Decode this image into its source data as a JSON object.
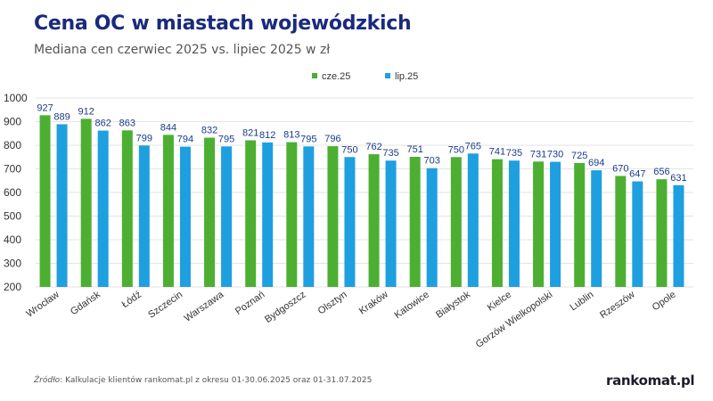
{
  "header": {
    "title": "Cena OC w miastach wojewódzkich",
    "subtitle": "Mediana cen czerwiec 2025 vs. lipiec 2025 w zł"
  },
  "footer": {
    "source_prefix": "Źródło",
    "source_text": ": Kalkulacje klientów rankomat.pl z okresu 01-30.06.2025 oraz 01-31.07.2025",
    "logo": "rankomat.pl"
  },
  "colors": {
    "series_june": "#4caf32",
    "series_july": "#1e9fe0",
    "value_label": "#1a3a8c",
    "axis_text": "#555555",
    "grid": "#e3e3e3"
  },
  "chart_data": {
    "type": "bar",
    "title": "Cena OC w miastach wojewódzkich",
    "subtitle": "Mediana cen czerwiec 2025 vs. lipiec 2025 w zł",
    "xlabel": "",
    "ylabel": "",
    "ylim": [
      200,
      1000
    ],
    "yticks": [
      200,
      300,
      400,
      500,
      600,
      700,
      800,
      900,
      1000
    ],
    "grid": true,
    "legend_position": "top-center",
    "categories": [
      "Wrocław",
      "Gdańsk",
      "Łódź",
      "Szczecin",
      "Warszawa",
      "Poznań",
      "Bydgoszcz",
      "Olsztyn",
      "Kraków",
      "Katowice",
      "Białystok",
      "Kielce",
      "Gorzów Wielkopolski",
      "Lublin",
      "Rzeszów",
      "Opole"
    ],
    "series": [
      {
        "name": "cze.25",
        "color": "#4caf32",
        "values": [
          927,
          912,
          863,
          844,
          832,
          821,
          813,
          796,
          762,
          751,
          750,
          741,
          731,
          725,
          670,
          656
        ]
      },
      {
        "name": "lip.25",
        "color": "#1e9fe0",
        "values": [
          889,
          862,
          799,
          794,
          795,
          812,
          795,
          750,
          735,
          703,
          765,
          735,
          730,
          694,
          647,
          631
        ]
      }
    ]
  }
}
